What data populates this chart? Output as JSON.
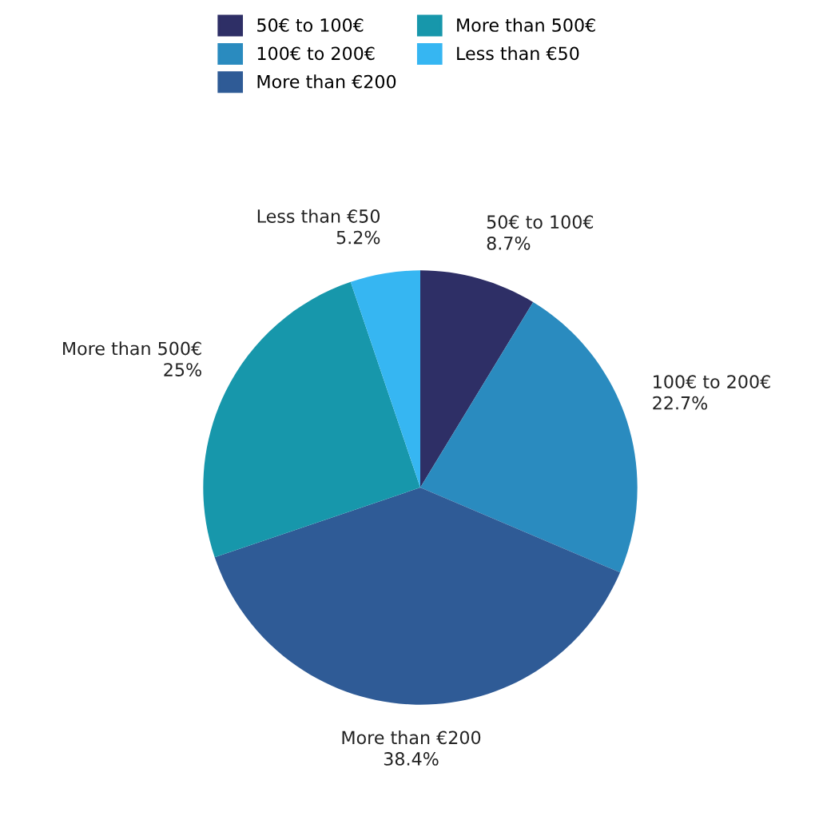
{
  "chart_data": {
    "type": "pie",
    "categories": [
      "50€ to 100€",
      "100€ to 200€",
      "More than €200",
      "More than 500€",
      "Less than €50"
    ],
    "values": [
      8.7,
      22.7,
      38.4,
      25,
      5.2
    ],
    "value_labels": [
      "8.7%",
      "22.7%",
      "38.4%",
      "25%",
      "5.2%"
    ],
    "colors": [
      "#2e2f66",
      "#2a8bbf",
      "#2f5b96",
      "#1797ab",
      "#36b6f2"
    ],
    "legend": "top"
  }
}
